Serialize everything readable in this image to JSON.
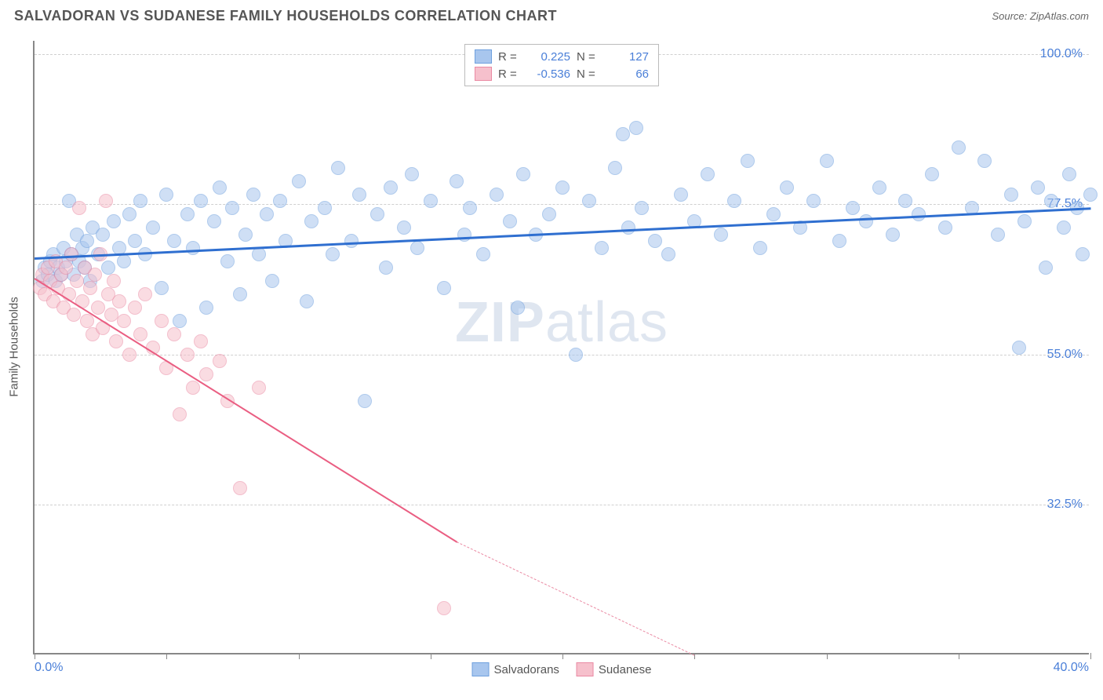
{
  "title": "SALVADORAN VS SUDANESE FAMILY HOUSEHOLDS CORRELATION CHART",
  "source_label": "Source: ZipAtlas.com",
  "watermark_bold": "ZIP",
  "watermark_rest": "atlas",
  "y_axis_label": "Family Households",
  "chart": {
    "type": "scatter",
    "xlim": [
      0,
      40
    ],
    "ylim": [
      10,
      102
    ],
    "x_min_label": "0.0%",
    "x_max_label": "40.0%",
    "y_ticks": [
      32.5,
      55.0,
      77.5,
      100.0
    ],
    "y_tick_labels": [
      "32.5%",
      "55.0%",
      "77.5%",
      "100.0%"
    ],
    "x_ticks": [
      0,
      5,
      10,
      15,
      20,
      25,
      30,
      35,
      40
    ],
    "background_color": "#ffffff",
    "grid_color": "#d0d0d0",
    "axis_color": "#888888",
    "label_color": "#4a7fd8",
    "marker_radius": 9,
    "marker_opacity": 0.55,
    "series": [
      {
        "name": "Salvadorans",
        "color_fill": "#a8c6ee",
        "color_stroke": "#6fa0de",
        "r_value": "0.225",
        "n_value": "127",
        "trend": {
          "x1": 0,
          "y1": 69.5,
          "x2": 40,
          "y2": 77.0,
          "color": "#2f6fd0",
          "width": 3
        },
        "points": [
          [
            0.3,
            66
          ],
          [
            0.4,
            68
          ],
          [
            0.5,
            67
          ],
          [
            0.6,
            69
          ],
          [
            0.7,
            70
          ],
          [
            0.8,
            66
          ],
          [
            0.9,
            68
          ],
          [
            1.0,
            67
          ],
          [
            1.1,
            71
          ],
          [
            1.2,
            69
          ],
          [
            1.3,
            78
          ],
          [
            1.4,
            70
          ],
          [
            1.5,
            67
          ],
          [
            1.6,
            73
          ],
          [
            1.7,
            69
          ],
          [
            1.8,
            71
          ],
          [
            1.9,
            68
          ],
          [
            2.0,
            72
          ],
          [
            2.1,
            66
          ],
          [
            2.2,
            74
          ],
          [
            2.4,
            70
          ],
          [
            2.6,
            73
          ],
          [
            2.8,
            68
          ],
          [
            3.0,
            75
          ],
          [
            3.2,
            71
          ],
          [
            3.4,
            69
          ],
          [
            3.6,
            76
          ],
          [
            3.8,
            72
          ],
          [
            4.0,
            78
          ],
          [
            4.2,
            70
          ],
          [
            4.5,
            74
          ],
          [
            4.8,
            65
          ],
          [
            5.0,
            79
          ],
          [
            5.3,
            72
          ],
          [
            5.5,
            60
          ],
          [
            5.8,
            76
          ],
          [
            6.0,
            71
          ],
          [
            6.3,
            78
          ],
          [
            6.5,
            62
          ],
          [
            6.8,
            75
          ],
          [
            7.0,
            80
          ],
          [
            7.3,
            69
          ],
          [
            7.5,
            77
          ],
          [
            7.8,
            64
          ],
          [
            8.0,
            73
          ],
          [
            8.3,
            79
          ],
          [
            8.5,
            70
          ],
          [
            8.8,
            76
          ],
          [
            9.0,
            66
          ],
          [
            9.3,
            78
          ],
          [
            9.5,
            72
          ],
          [
            10.0,
            81
          ],
          [
            10.3,
            63
          ],
          [
            10.5,
            75
          ],
          [
            11.0,
            77
          ],
          [
            11.3,
            70
          ],
          [
            11.5,
            83
          ],
          [
            12.0,
            72
          ],
          [
            12.3,
            79
          ],
          [
            12.5,
            48
          ],
          [
            13.0,
            76
          ],
          [
            13.3,
            68
          ],
          [
            13.5,
            80
          ],
          [
            14.0,
            74
          ],
          [
            14.3,
            82
          ],
          [
            14.5,
            71
          ],
          [
            15.0,
            78
          ],
          [
            15.5,
            65
          ],
          [
            16.0,
            81
          ],
          [
            16.3,
            73
          ],
          [
            16.5,
            77
          ],
          [
            17.0,
            70
          ],
          [
            17.5,
            79
          ],
          [
            18.0,
            75
          ],
          [
            18.3,
            62
          ],
          [
            18.5,
            82
          ],
          [
            19.0,
            73
          ],
          [
            19.5,
            76
          ],
          [
            20.0,
            80
          ],
          [
            20.5,
            55
          ],
          [
            21.0,
            78
          ],
          [
            21.5,
            71
          ],
          [
            22.0,
            83
          ],
          [
            22.3,
            88
          ],
          [
            22.5,
            74
          ],
          [
            22.8,
            89
          ],
          [
            23.0,
            77
          ],
          [
            23.5,
            72
          ],
          [
            24.0,
            70
          ],
          [
            24.5,
            79
          ],
          [
            25.0,
            75
          ],
          [
            25.5,
            82
          ],
          [
            26.0,
            73
          ],
          [
            26.5,
            78
          ],
          [
            27.0,
            84
          ],
          [
            27.5,
            71
          ],
          [
            28.0,
            76
          ],
          [
            28.5,
            80
          ],
          [
            29.0,
            74
          ],
          [
            29.5,
            78
          ],
          [
            30.0,
            84
          ],
          [
            30.5,
            72
          ],
          [
            31.0,
            77
          ],
          [
            31.5,
            75
          ],
          [
            32.0,
            80
          ],
          [
            32.5,
            73
          ],
          [
            33.0,
            78
          ],
          [
            33.5,
            76
          ],
          [
            34.0,
            82
          ],
          [
            34.5,
            74
          ],
          [
            35.0,
            86
          ],
          [
            35.5,
            77
          ],
          [
            36.0,
            84
          ],
          [
            36.5,
            73
          ],
          [
            37.0,
            79
          ],
          [
            37.3,
            56
          ],
          [
            37.5,
            75
          ],
          [
            38.0,
            80
          ],
          [
            38.3,
            68
          ],
          [
            38.5,
            78
          ],
          [
            39.0,
            74
          ],
          [
            39.2,
            82
          ],
          [
            39.5,
            77
          ],
          [
            39.7,
            70
          ],
          [
            40.0,
            79
          ]
        ]
      },
      {
        "name": "Sudanese",
        "color_fill": "#f6c0cc",
        "color_stroke": "#ea8aa3",
        "r_value": "-0.536",
        "n_value": "66",
        "trend": {
          "x1": 0,
          "y1": 66.5,
          "x2": 16,
          "y2": 27.0,
          "color": "#ea5e82",
          "width": 2
        },
        "trend_dash": {
          "x1": 16,
          "y1": 27.0,
          "x2": 25,
          "y2": 10.0,
          "color": "#ea8aa3",
          "width": 1
        },
        "points": [
          [
            0.2,
            65
          ],
          [
            0.3,
            67
          ],
          [
            0.4,
            64
          ],
          [
            0.5,
            68
          ],
          [
            0.6,
            66
          ],
          [
            0.7,
            63
          ],
          [
            0.8,
            69
          ],
          [
            0.9,
            65
          ],
          [
            1.0,
            67
          ],
          [
            1.1,
            62
          ],
          [
            1.2,
            68
          ],
          [
            1.3,
            64
          ],
          [
            1.4,
            70
          ],
          [
            1.5,
            61
          ],
          [
            1.6,
            66
          ],
          [
            1.7,
            77
          ],
          [
            1.8,
            63
          ],
          [
            1.9,
            68
          ],
          [
            2.0,
            60
          ],
          [
            2.1,
            65
          ],
          [
            2.2,
            58
          ],
          [
            2.3,
            67
          ],
          [
            2.4,
            62
          ],
          [
            2.5,
            70
          ],
          [
            2.6,
            59
          ],
          [
            2.7,
            78
          ],
          [
            2.8,
            64
          ],
          [
            2.9,
            61
          ],
          [
            3.0,
            66
          ],
          [
            3.1,
            57
          ],
          [
            3.2,
            63
          ],
          [
            3.4,
            60
          ],
          [
            3.6,
            55
          ],
          [
            3.8,
            62
          ],
          [
            4.0,
            58
          ],
          [
            4.2,
            64
          ],
          [
            4.5,
            56
          ],
          [
            4.8,
            60
          ],
          [
            5.0,
            53
          ],
          [
            5.3,
            58
          ],
          [
            5.5,
            46
          ],
          [
            5.8,
            55
          ],
          [
            6.0,
            50
          ],
          [
            6.3,
            57
          ],
          [
            6.5,
            52
          ],
          [
            7.0,
            54
          ],
          [
            7.3,
            48
          ],
          [
            7.8,
            35
          ],
          [
            8.5,
            50
          ],
          [
            15.5,
            17
          ]
        ]
      }
    ]
  },
  "legend_top": {
    "r_label": "R =",
    "n_label": "N ="
  },
  "legend_bottom": {
    "items": [
      "Salvadorans",
      "Sudanese"
    ]
  }
}
